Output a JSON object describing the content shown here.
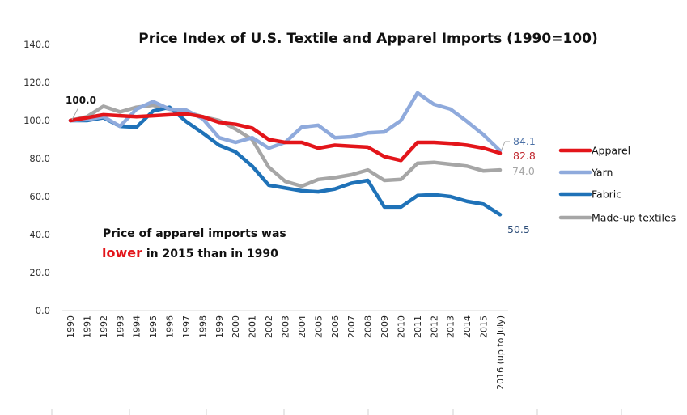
{
  "chart_data": {
    "type": "line",
    "title": "Price Index of U.S. Textile and Apparel Imports (1990=100)",
    "xlabel": "",
    "ylabel": "",
    "ylim": [
      0,
      140
    ],
    "yticks": [
      "0.0",
      "20.0",
      "40.0",
      "60.0",
      "80.0",
      "100.0",
      "120.0",
      "140.0"
    ],
    "ytick_values": [
      0,
      20,
      40,
      60,
      80,
      100,
      120,
      140
    ],
    "grid": false,
    "legend_position": "right",
    "categories": [
      "1990",
      "1991",
      "1992",
      "1993",
      "1994",
      "1995",
      "1996",
      "1997",
      "1998",
      "1999",
      "2000",
      "2001",
      "2002",
      "2003",
      "2004",
      "2005",
      "2006",
      "2007",
      "2008",
      "2009",
      "2010",
      "2011",
      "2012",
      "2013",
      "2014",
      "2015",
      "2016 (up to July)"
    ],
    "series": [
      {
        "name": "Apparel",
        "color": "#e3151a",
        "values": [
          100,
          101.5,
          103,
          102.5,
          102,
          102.5,
          103,
          103.5,
          102,
          99,
          98,
          96,
          90,
          88.5,
          88.5,
          85.5,
          87,
          86.5,
          86,
          81,
          79,
          88.5,
          88.5,
          88,
          87,
          85.5,
          82.8
        ],
        "end_label": "82.8",
        "end_label_color": "#c0262d"
      },
      {
        "name": "Yarn",
        "color": "#8faadc",
        "values": [
          100,
          100.5,
          102,
          97,
          106,
          110,
          106,
          105.5,
          101,
          91,
          88.5,
          91,
          85.5,
          88.5,
          96.5,
          97.5,
          91,
          91.5,
          93.5,
          94,
          100,
          114.5,
          108.5,
          106,
          99.5,
          92.5,
          84.1
        ],
        "end_label": "84.1",
        "end_label_color": "#4a6fa5"
      },
      {
        "name": "Fabric",
        "color": "#1f72b8",
        "values": [
          100,
          100,
          101.5,
          97,
          96.5,
          105,
          107,
          99.5,
          93.5,
          87,
          83.5,
          76,
          66,
          64.5,
          63,
          62.5,
          64,
          67,
          68.5,
          54.5,
          54.5,
          60.5,
          61,
          60,
          57.5,
          56,
          50.5
        ],
        "end_label": "50.5",
        "end_label_color": "#2f4f7a"
      },
      {
        "name": "Made-up textiles",
        "color": "#a6a6a6",
        "values": [
          100,
          102,
          107.5,
          104.5,
          107,
          108,
          106,
          104.5,
          102,
          100,
          95.5,
          90,
          75.5,
          68,
          65.5,
          69,
          70,
          71.5,
          74,
          68.5,
          69,
          77.5,
          78,
          77,
          76,
          73.5,
          74.0
        ],
        "end_label": "74.0",
        "end_label_color": "#a6a6a6"
      }
    ],
    "annotations": {
      "start_label": "100.0",
      "note_line1": "Price of apparel imports was",
      "note_highlight": "lower",
      "note_highlight_color": "#e3151a",
      "note_line2_rest": " in 2015  than in 1990"
    }
  }
}
